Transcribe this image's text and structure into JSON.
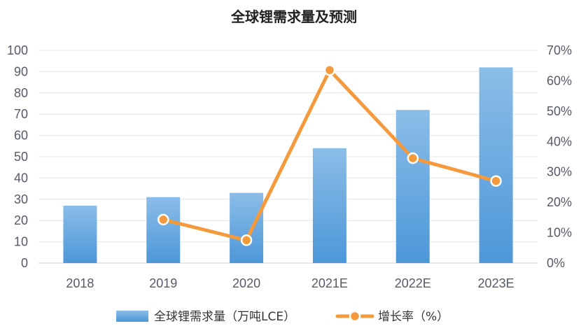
{
  "chart_data": {
    "type": "bar+line",
    "title": "全球锂需求量及预测",
    "categories": [
      "2018",
      "2019",
      "2020",
      "2021E",
      "2022E",
      "2023E"
    ],
    "series": [
      {
        "name": "全球锂需求量（万吨LCE）",
        "type": "bar",
        "axis": "left",
        "values": [
          27,
          31,
          33,
          54,
          72,
          92
        ],
        "color": "#5b9fd9"
      },
      {
        "name": "增长率（%）",
        "type": "line",
        "axis": "right",
        "values": [
          null,
          14.3,
          7.5,
          63.5,
          34.5,
          27
        ],
        "color": "#f59a3c"
      }
    ],
    "y_left": {
      "min": 0,
      "max": 100,
      "ticks": [
        "0",
        "10",
        "20",
        "30",
        "40",
        "50",
        "60",
        "70",
        "80",
        "90",
        "100"
      ]
    },
    "y_right": {
      "min": 0,
      "max": 70,
      "ticks": [
        "0%",
        "10%",
        "20%",
        "30%",
        "40%",
        "50%",
        "60%",
        "70%"
      ]
    },
    "grid": true,
    "legend_position": "bottom"
  }
}
